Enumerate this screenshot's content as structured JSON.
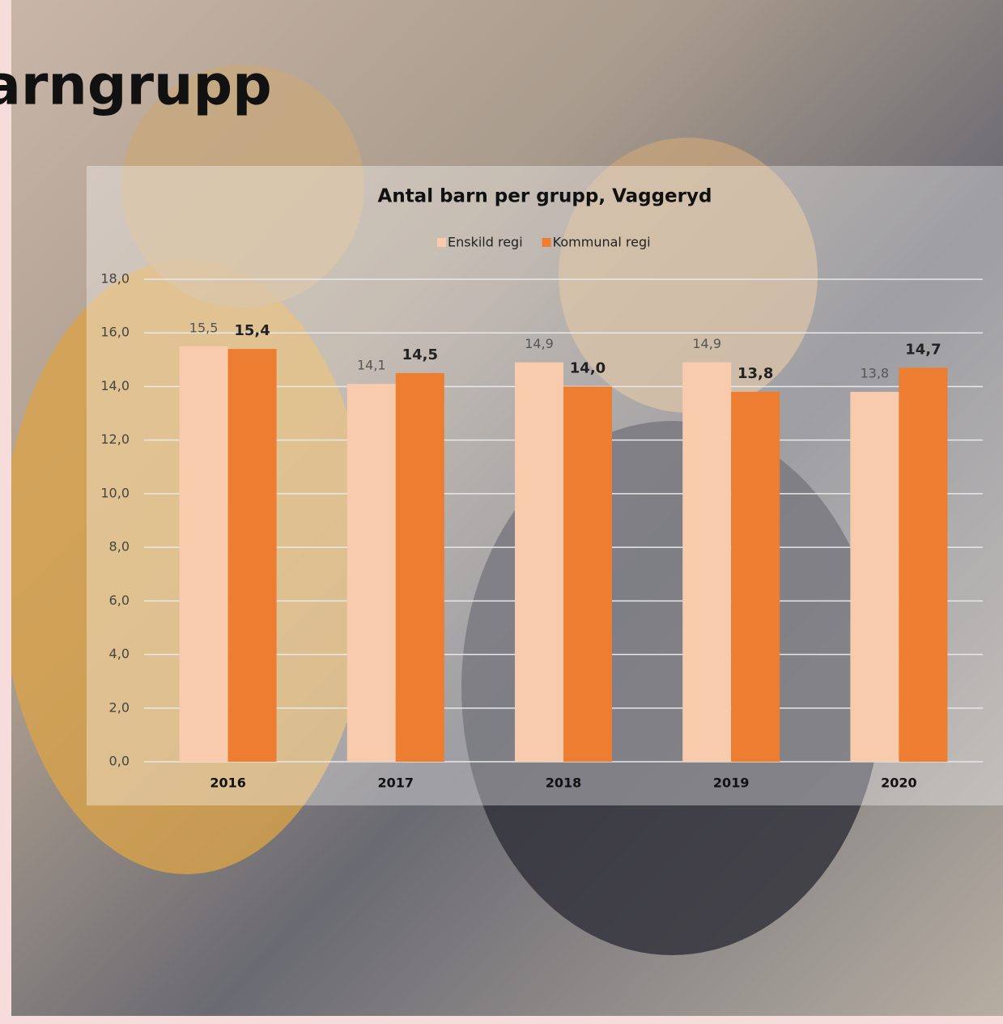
{
  "slide_title": "arngrupp",
  "chart_data": {
    "type": "bar",
    "title": "Antal barn per grupp, Vaggeryd",
    "categories": [
      "2016",
      "2017",
      "2018",
      "2019",
      "2020"
    ],
    "series": [
      {
        "name": "Enskild regi",
        "color": "#f8cbad",
        "values": [
          15.5,
          14.1,
          14.9,
          14.9,
          13.8
        ],
        "value_labels": [
          "15,5",
          "14,1",
          "14,9",
          "14,9",
          "13,8"
        ]
      },
      {
        "name": "Kommunal regi",
        "color": "#ed7d31",
        "values": [
          15.4,
          14.5,
          14.0,
          13.8,
          14.7
        ],
        "value_labels": [
          "15,4",
          "14,5",
          "14,0",
          "13,8",
          "14,7"
        ]
      }
    ],
    "ylim": [
      0,
      18
    ],
    "yticks": [
      {
        "value": 0,
        "label": "0,0"
      },
      {
        "value": 2,
        "label": "2,0"
      },
      {
        "value": 4,
        "label": "4,0"
      },
      {
        "value": 6,
        "label": "6,0"
      },
      {
        "value": 8,
        "label": "8,0"
      },
      {
        "value": 10,
        "label": "10,0"
      },
      {
        "value": 12,
        "label": "12,0"
      },
      {
        "value": 14,
        "label": "14,0"
      },
      {
        "value": 16,
        "label": "16,0"
      },
      {
        "value": 18,
        "label": "18,0"
      }
    ],
    "grid": true,
    "legend": "top"
  }
}
